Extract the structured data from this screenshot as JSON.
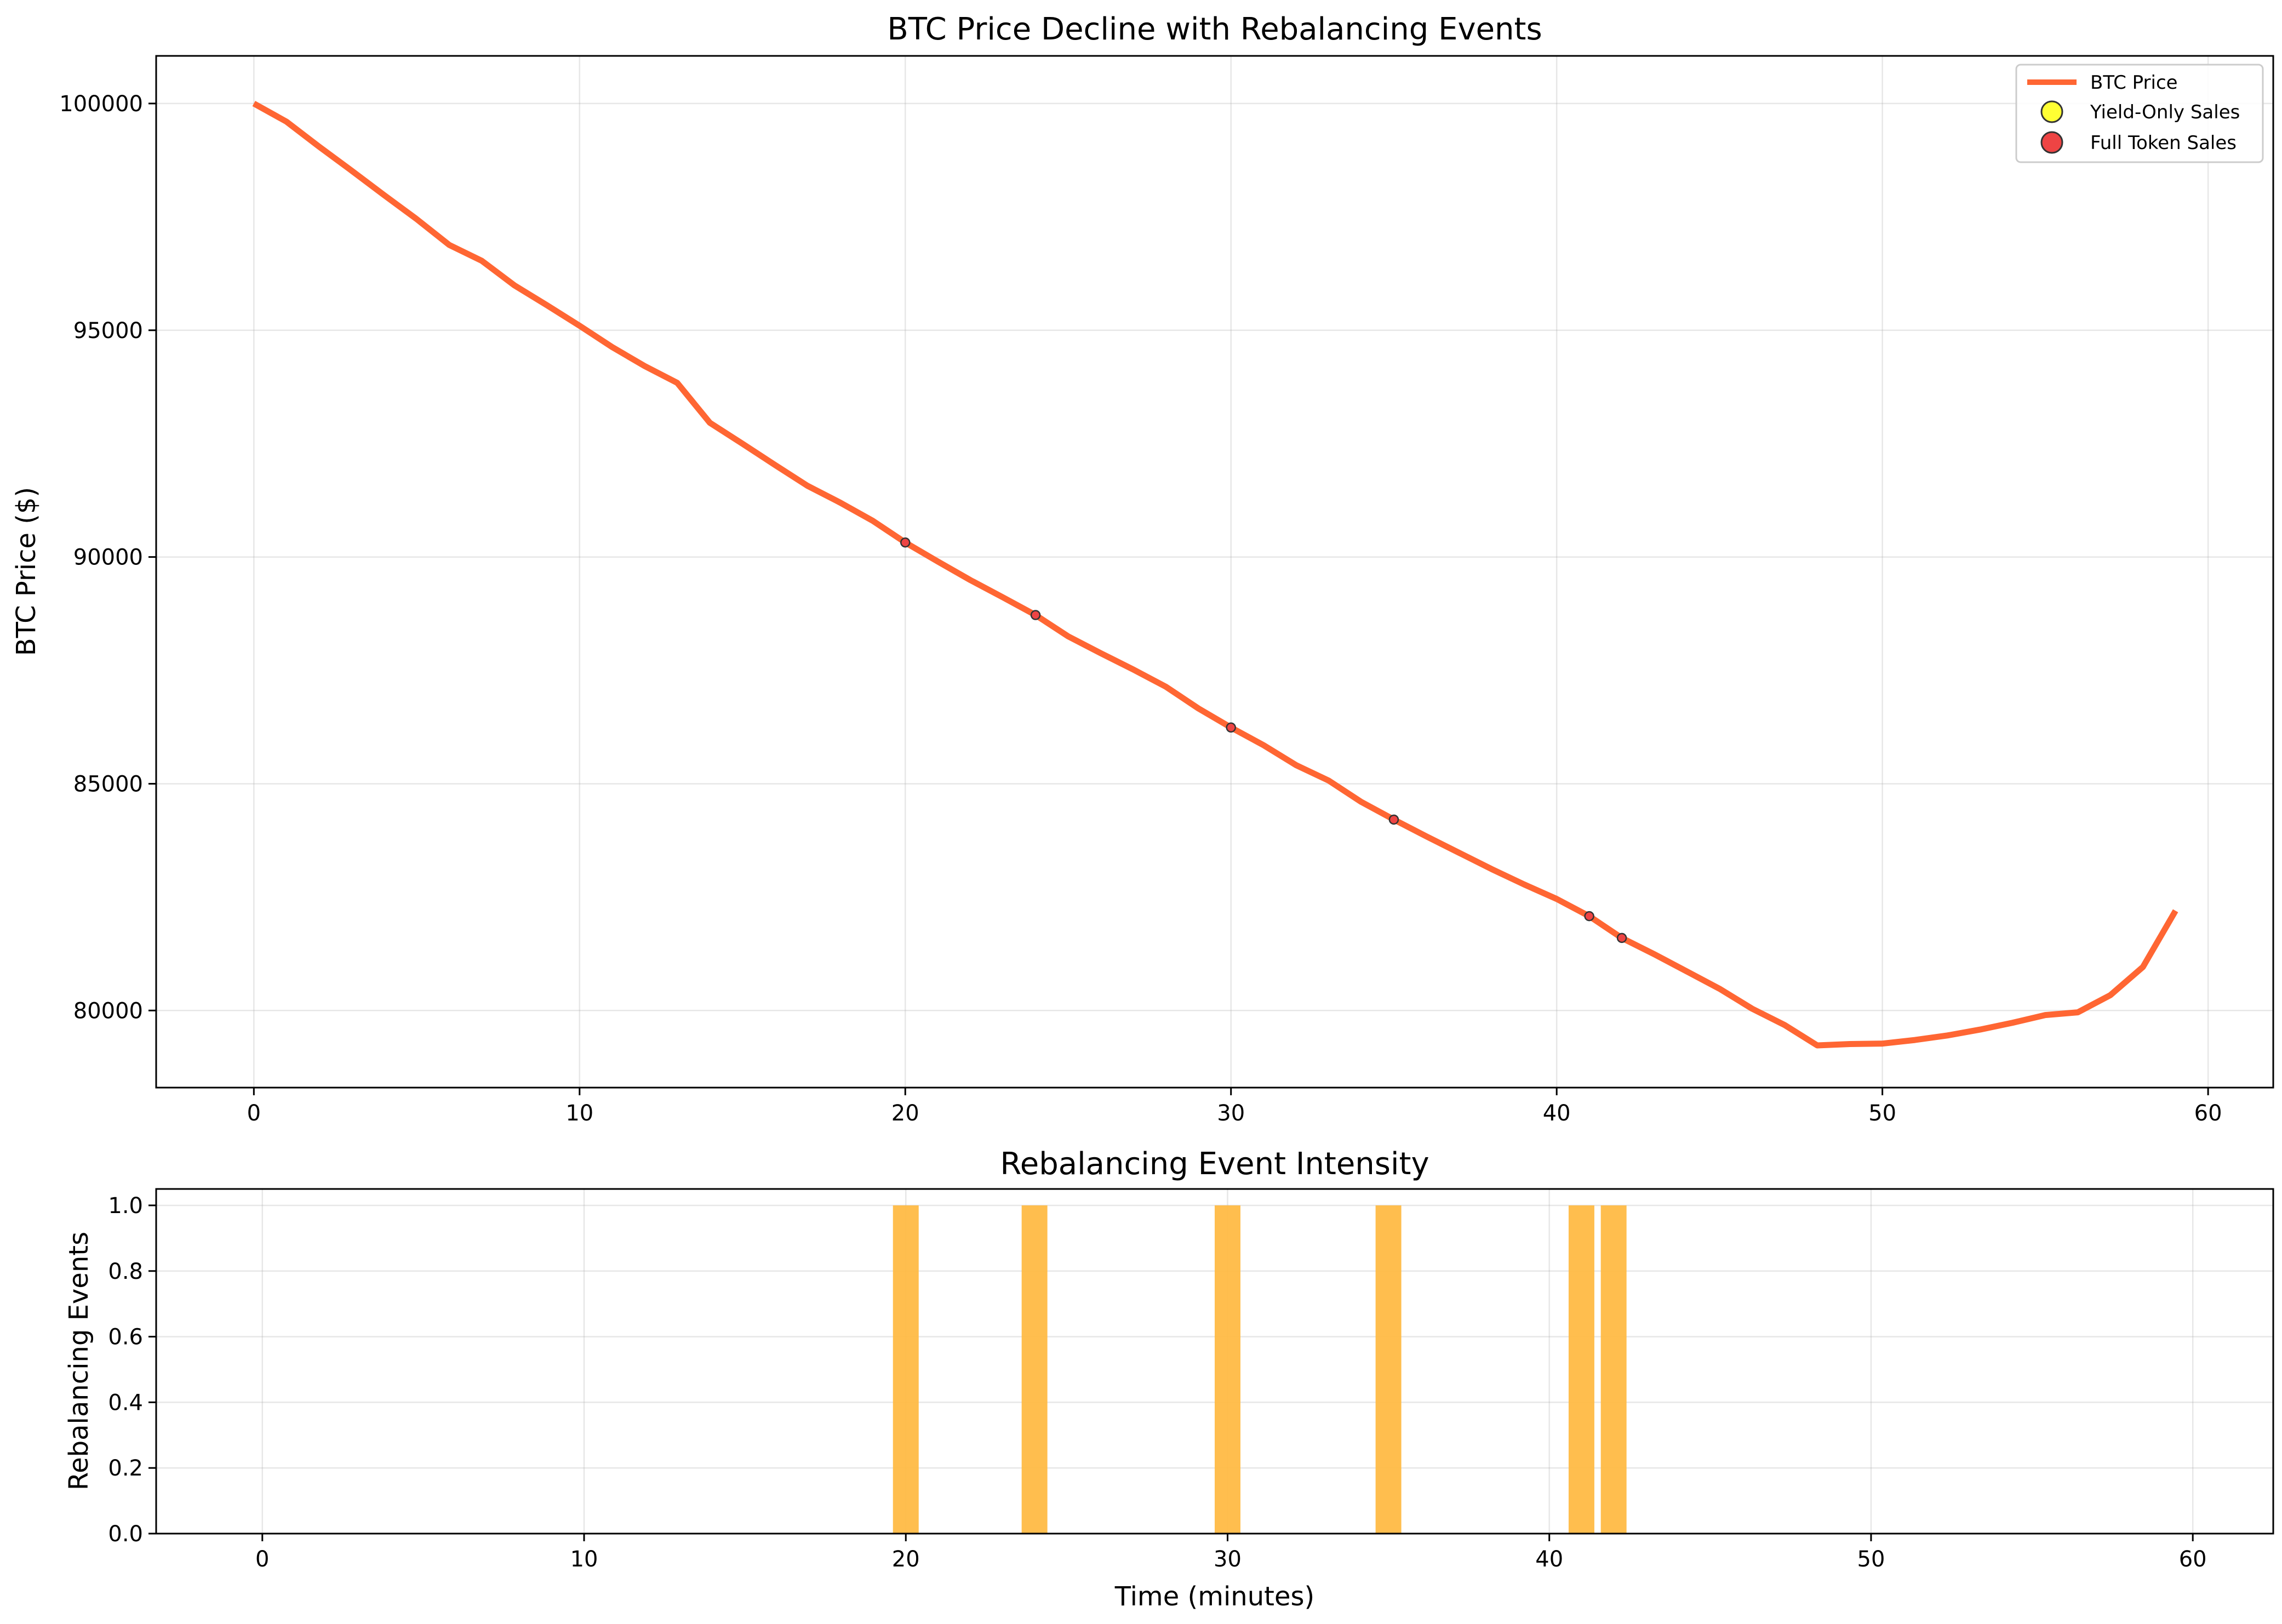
{
  "chart_data": [
    {
      "type": "line",
      "title": "BTC Price Decline with Rebalancing Events",
      "xlabel": "",
      "ylabel": "BTC Price ($)",
      "xlim": [
        -3,
        62
      ],
      "ylim": [
        78300,
        101050
      ],
      "xticks": [
        0,
        10,
        20,
        30,
        40,
        50,
        60
      ],
      "yticks": [
        80000,
        85000,
        90000,
        95000,
        100000
      ],
      "grid": true,
      "legend_position": "top-right",
      "legend": [
        "BTC Price",
        "Yield-Only Sales",
        "Full Token Sales"
      ],
      "colors": {
        "line": "#ff6633",
        "yield_marker": "#ffff33",
        "full_marker": "#ee4444"
      },
      "series": [
        {
          "name": "BTC Price",
          "x": [
            0,
            1,
            2,
            3,
            4,
            5,
            6,
            7,
            8,
            9,
            10,
            11,
            12,
            13,
            14,
            15,
            16,
            17,
            18,
            19,
            20,
            21,
            22,
            23,
            24,
            25,
            26,
            27,
            28,
            29,
            30,
            31,
            32,
            33,
            34,
            35,
            36,
            37,
            38,
            39,
            40,
            41,
            42,
            43,
            44,
            45,
            46,
            47,
            48,
            49,
            50,
            51,
            52,
            53,
            54,
            55,
            56,
            57,
            58,
            59
          ],
          "y": [
            100000,
            99600,
            99050,
            98520,
            97980,
            97450,
            96880,
            96530,
            95990,
            95550,
            95100,
            94630,
            94210,
            93840,
            92960,
            92500,
            92030,
            91570,
            91200,
            90800,
            90320,
            89900,
            89490,
            89110,
            88720,
            88250,
            87880,
            87520,
            87140,
            86660,
            86240,
            85850,
            85410,
            85070,
            84600,
            84210,
            83840,
            83480,
            83120,
            82780,
            82460,
            82080,
            81600,
            81240,
            80860,
            80480,
            80040,
            79680,
            79230,
            79260,
            79270,
            79350,
            79450,
            79580,
            79730,
            79900,
            79960,
            80340,
            80960,
            82200
          ]
        },
        {
          "name": "Full Token Sales",
          "x": [
            20,
            24,
            30,
            35,
            41,
            42
          ],
          "y": [
            90320,
            88720,
            86240,
            84210,
            82080,
            81600
          ]
        }
      ]
    },
    {
      "type": "bar",
      "title": "Rebalancing Event Intensity",
      "xlabel": "Time (minutes)",
      "ylabel": "Rebalancing Events",
      "xlim": [
        -3.3,
        62.5
      ],
      "ylim": [
        0,
        1.05
      ],
      "xticks": [
        0,
        10,
        20,
        30,
        40,
        50,
        60
      ],
      "yticks": [
        "0.0",
        "0.2",
        "0.4",
        "0.6",
        "0.8",
        "1.0"
      ],
      "grid": true,
      "bar_color": "#ffbb44",
      "x": [
        20,
        24,
        30,
        35,
        41,
        42
      ],
      "values": [
        1,
        1,
        1,
        1,
        1,
        1
      ]
    }
  ]
}
